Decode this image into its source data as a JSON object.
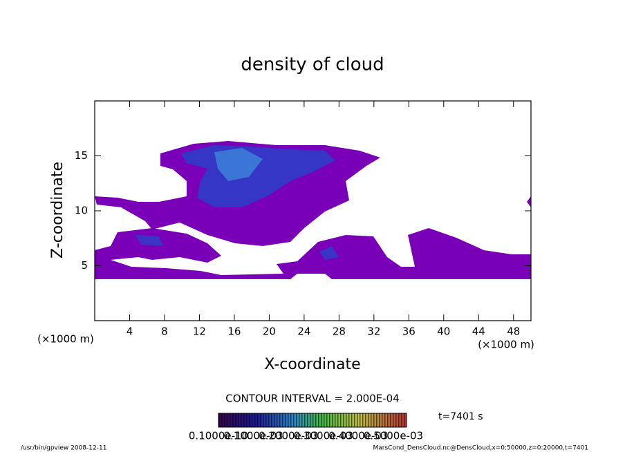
{
  "chart_data": {
    "type": "contour",
    "title": "density of cloud",
    "xlabel": "X-coordinate",
    "ylabel": "Z-coordinate",
    "x_unit": "(×1000 m)",
    "y_unit": "(×1000 m)",
    "xlim": [
      0,
      50
    ],
    "xticks": [
      4,
      8,
      12,
      16,
      20,
      24,
      28,
      32,
      36,
      40,
      44,
      48
    ],
    "ylim": [
      0,
      20
    ],
    "yticks": [
      5,
      10,
      15
    ],
    "contour_interval": "CONTOUR INTERVAL = 2.000E-04",
    "time_label": "t=7401 s",
    "colorbar_labels": [
      "0.1000e-10",
      "0.1000e-03",
      "0.2000e-03",
      "0.3000e-03",
      "0.4000e-03",
      "0.5000e-03"
    ],
    "footer_left": "/usr/bin/gpview  2008-12-11",
    "footer_right": "MarsCond_DensCloud.nc@DensCloud,x=0:50000,z=0:20000,t=7401"
  }
}
